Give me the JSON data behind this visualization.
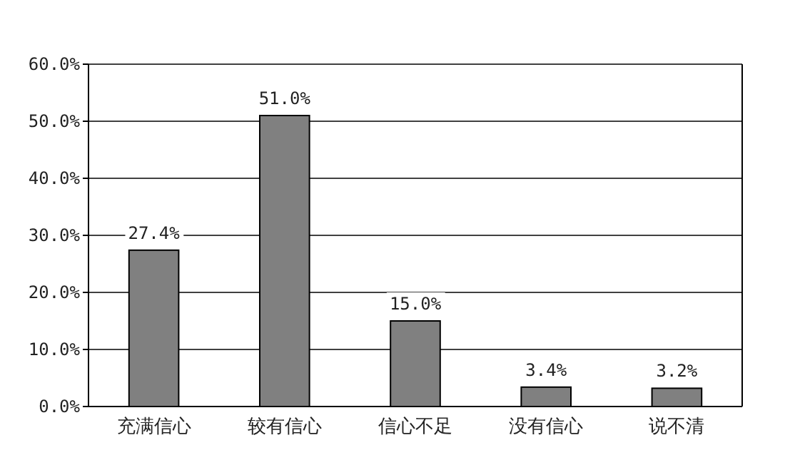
{
  "chart_data": {
    "type": "bar",
    "categories": [
      "充满信心",
      "较有信心",
      "信心不足",
      "没有信心",
      "说不清"
    ],
    "values": [
      27.4,
      51.0,
      15.0,
      3.4,
      3.2
    ],
    "value_labels": [
      "27.4%",
      "51.0%",
      "15.0%",
      "3.4%",
      "3.2%"
    ],
    "color": "#808080",
    "ylim": [
      0,
      60
    ],
    "yticks": [
      {
        "value": 0,
        "label": "0.0%"
      },
      {
        "value": 10,
        "label": "10.0%"
      },
      {
        "value": 20,
        "label": "20.0%"
      },
      {
        "value": 30,
        "label": "30.0%"
      },
      {
        "value": 40,
        "label": "40.0%"
      },
      {
        "value": 50,
        "label": "50.0%"
      },
      {
        "value": 60,
        "label": "60.0%"
      }
    ],
    "grid": "y"
  }
}
